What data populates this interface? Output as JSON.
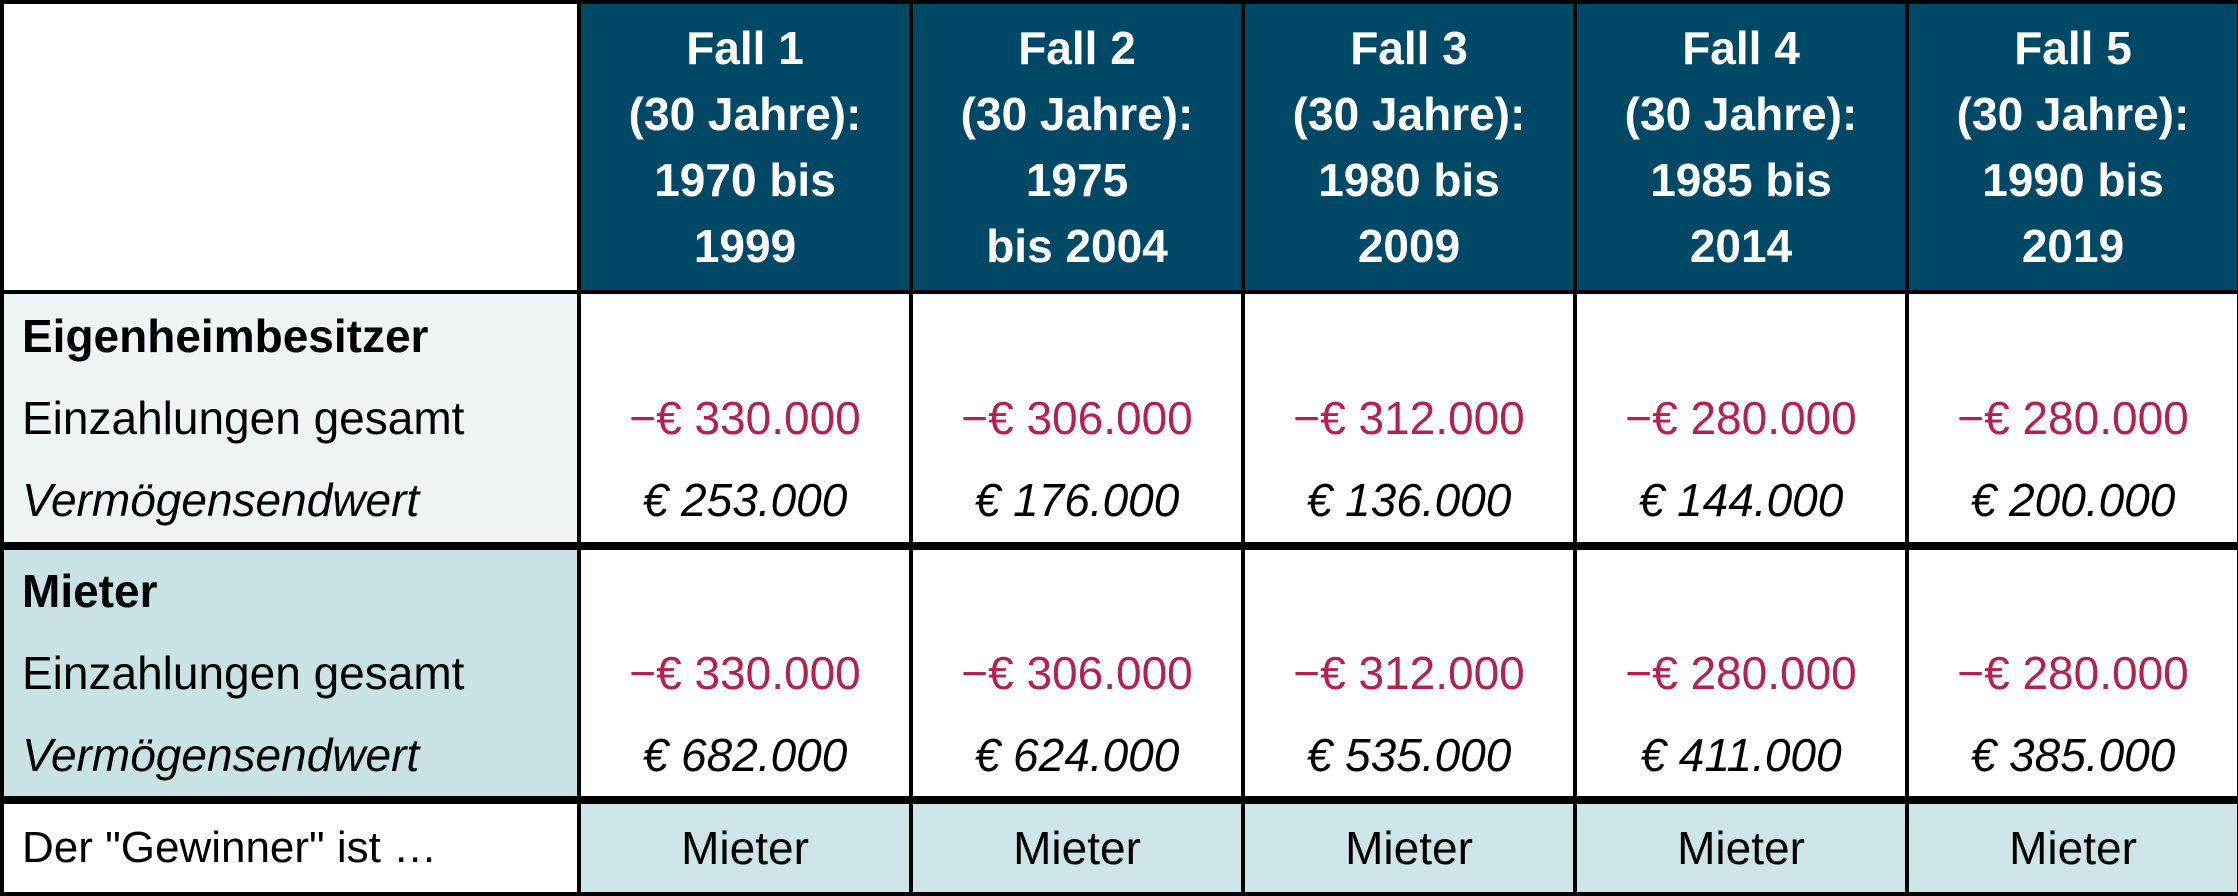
{
  "header": {
    "cases": [
      {
        "line1": "Fall 1",
        "line2": "(30 Jahre):",
        "line3": "1970 bis",
        "line4": "1999"
      },
      {
        "line1": "Fall 2",
        "line2": "(30 Jahre):",
        "line3": "1975",
        "line4": "bis 2004"
      },
      {
        "line1": "Fall 3",
        "line2": "(30 Jahre):",
        "line3": "1980 bis",
        "line4": "2009"
      },
      {
        "line1": "Fall 4",
        "line2": "(30 Jahre):",
        "line3": "1985 bis",
        "line4": "2014"
      },
      {
        "line1": "Fall 5",
        "line2": "(30 Jahre):",
        "line3": "1990 bis",
        "line4": "2019"
      }
    ]
  },
  "owner": {
    "title": "Eigenheimbesitzer",
    "payments_label": "Einzahlungen gesamt",
    "endvalue_label": "Vermögensendwert",
    "values": [
      {
        "payments": "−€ 330.000",
        "endvalue": "€ 253.000"
      },
      {
        "payments": "−€ 306.000",
        "endvalue": "€ 176.000"
      },
      {
        "payments": "−€ 312.000",
        "endvalue": "€ 136.000"
      },
      {
        "payments": "−€ 280.000",
        "endvalue": "€ 144.000"
      },
      {
        "payments": "−€ 280.000",
        "endvalue": "€ 200.000"
      }
    ]
  },
  "renter": {
    "title": "Mieter",
    "payments_label": "Einzahlungen gesamt",
    "endvalue_label": "Vermögensendwert",
    "values": [
      {
        "payments": "−€ 330.000",
        "endvalue": "€ 682.000"
      },
      {
        "payments": "−€ 306.000",
        "endvalue": "€ 624.000"
      },
      {
        "payments": "−€ 312.000",
        "endvalue": "€ 535.000"
      },
      {
        "payments": "−€ 280.000",
        "endvalue": "€ 411.000"
      },
      {
        "payments": "−€ 280.000",
        "endvalue": "€ 385.000"
      }
    ]
  },
  "winner": {
    "label": "Der \"Gewinner\" ist …",
    "values": [
      "Mieter",
      "Mieter",
      "Mieter",
      "Mieter",
      "Mieter"
    ]
  },
  "colors": {
    "header_bg": "#004966",
    "negative": "#b4204f",
    "owner_label_bg": "#eef4f5",
    "renter_label_bg": "#c9e3e4",
    "winner_bg": "#cde5e6"
  }
}
